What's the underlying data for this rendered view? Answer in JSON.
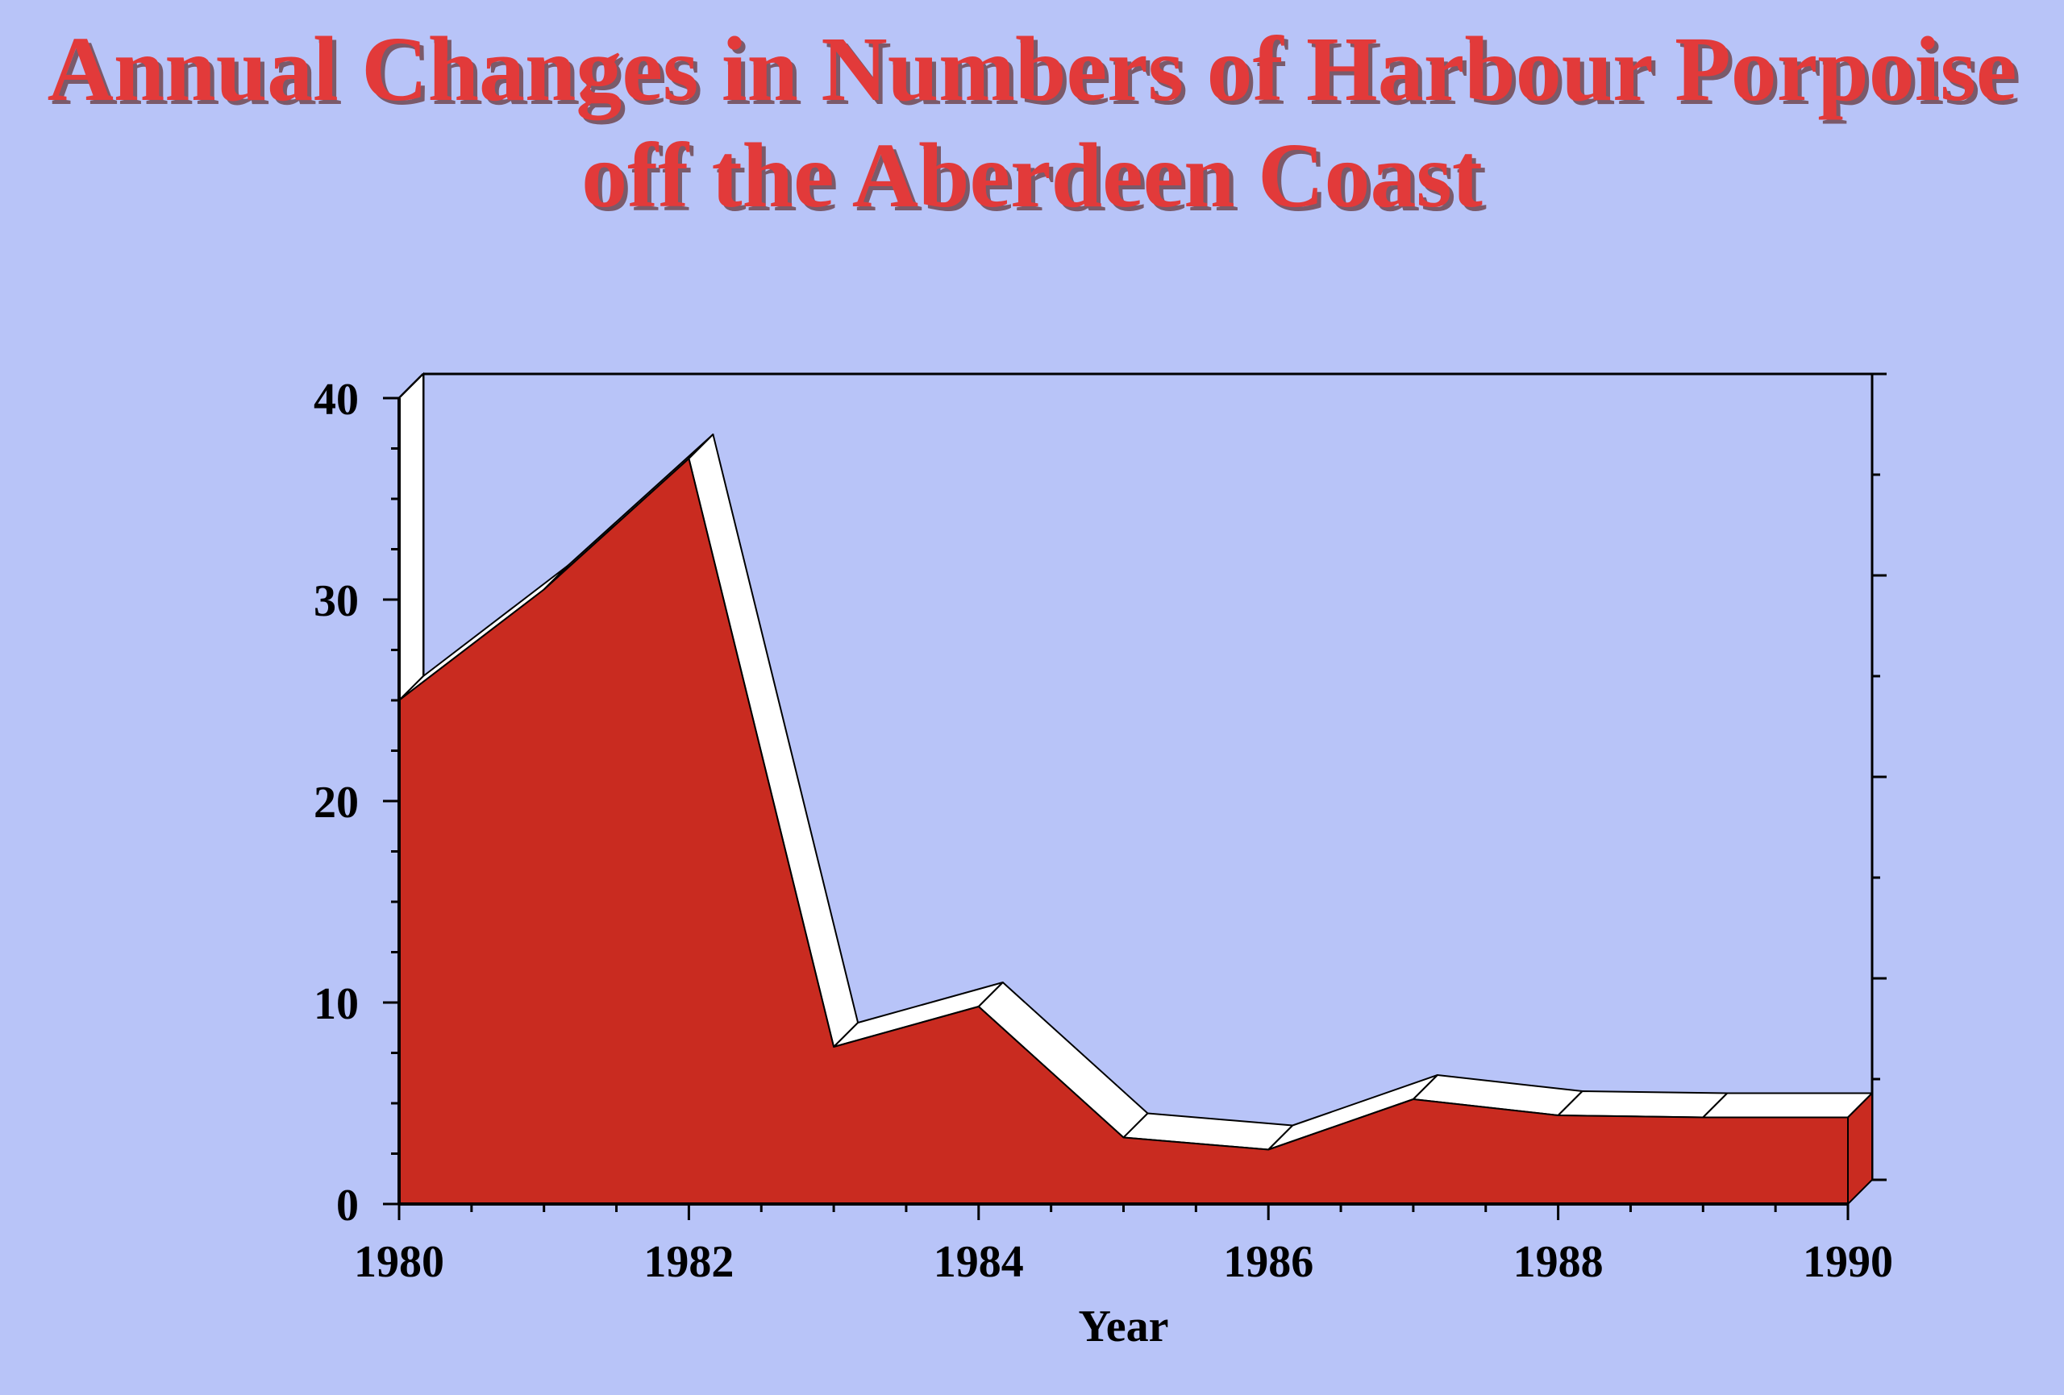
{
  "chart_data": {
    "type": "area",
    "title": [
      "Annual Changes in Numbers of Harbour Porpoise",
      "off the Aberdeen Coast"
    ],
    "xlabel": "Year",
    "ylabel": "",
    "x": [
      1980,
      1981,
      1982,
      1983,
      1984,
      1985,
      1986,
      1987,
      1988,
      1989,
      1990
    ],
    "series": [
      {
        "values": [
          25,
          30.5,
          37,
          7.8,
          9.8,
          3.3,
          2.7,
          5.2,
          4.4,
          4.3,
          4.3
        ],
        "color": "#c92b20"
      }
    ],
    "xlim": [
      1980,
      1990
    ],
    "ylim": [
      0,
      40
    ],
    "xticks": [
      "1980",
      "1982",
      "1984",
      "1986",
      "1988",
      "1990"
    ],
    "yticks": [
      "0",
      "10",
      "20",
      "30",
      "40"
    ],
    "style": "3d-area",
    "grid": false,
    "legend": "none"
  },
  "colors": {
    "background": "#b8c4f8",
    "title": "#e23a3a",
    "area": "#c92b20",
    "area_top": "#ffffff"
  }
}
